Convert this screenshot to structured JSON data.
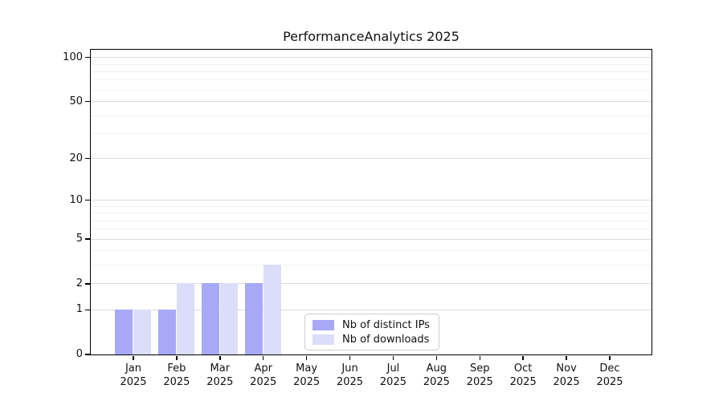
{
  "chart_data": {
    "type": "bar",
    "title": "PerformanceAnalytics 2025",
    "categories": [
      "Jan 2025",
      "Feb 2025",
      "Mar 2025",
      "Apr 2025",
      "May 2025",
      "Jun 2025",
      "Jul 2025",
      "Aug 2025",
      "Sep 2025",
      "Oct 2025",
      "Nov 2025",
      "Dec 2025"
    ],
    "series": [
      {
        "name": "Nb of distinct IPs",
        "values": [
          1,
          1,
          2,
          2,
          0,
          0,
          0,
          0,
          0,
          0,
          0,
          0
        ],
        "color": "#a7a9f6"
      },
      {
        "name": "Nb of downloads",
        "values": [
          1,
          2,
          2,
          3,
          0,
          0,
          0,
          0,
          0,
          0,
          0,
          0
        ],
        "color": "#dcddf9"
      }
    ],
    "xlabel": "",
    "ylabel": "",
    "yscale": "log1p",
    "ylim": [
      0,
      113
    ],
    "yticks": [
      0,
      1,
      2,
      5,
      10,
      20,
      50,
      100
    ],
    "yticks_minor": [
      3,
      4,
      6,
      7,
      8,
      9,
      30,
      40,
      60,
      70,
      80,
      90
    ],
    "grid": true,
    "legend": {
      "position": "bottom-center-inside",
      "entries": [
        "Nb of distinct IPs",
        "Nb of downloads"
      ]
    }
  }
}
